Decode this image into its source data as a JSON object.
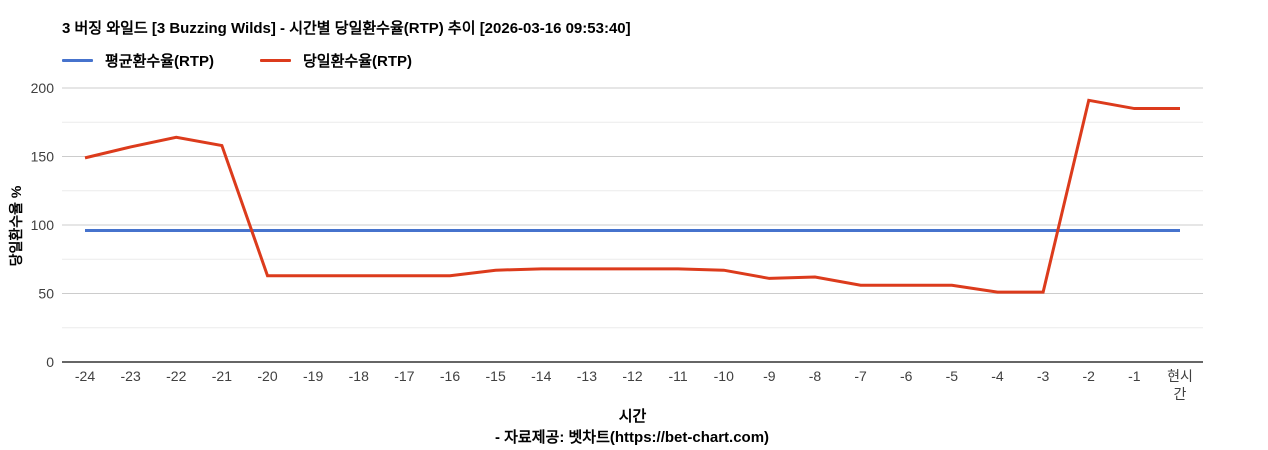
{
  "footer": {
    "text": "- 자료제공: 벳차트(https://bet-chart.com)"
  },
  "chart_data": {
    "type": "line",
    "title": "3 버징 와일드 [3 Buzzing Wilds] - 시간별 당일환수율(RTP) 추이 [2026-03-16 09:53:40]",
    "xlabel": "시간",
    "ylabel": "당일환수율 %",
    "ylim": [
      0,
      200
    ],
    "yticks": [
      0,
      50,
      100,
      150,
      200
    ],
    "minor_gridlines": [
      25,
      75,
      125,
      175
    ],
    "grid": true,
    "legend_position": "top-left",
    "categories": [
      "-24",
      "-23",
      "-22",
      "-21",
      "-20",
      "-19",
      "-18",
      "-17",
      "-16",
      "-15",
      "-14",
      "-13",
      "-12",
      "-11",
      "-10",
      "-9",
      "-8",
      "-7",
      "-6",
      "-5",
      "-4",
      "-3",
      "-2",
      "-1",
      "현시간"
    ],
    "series": [
      {
        "name": "평균환수율(RTP)",
        "color": "#4673cd",
        "values": [
          96,
          96,
          96,
          96,
          96,
          96,
          96,
          96,
          96,
          96,
          96,
          96,
          96,
          96,
          96,
          96,
          96,
          96,
          96,
          96,
          96,
          96,
          96,
          96,
          96
        ]
      },
      {
        "name": "당일환수율(RTP)",
        "color": "#dc3b1c",
        "values": [
          149,
          157,
          164,
          158,
          63,
          63,
          63,
          63,
          63,
          67,
          68,
          68,
          68,
          68,
          67,
          61,
          62,
          56,
          56,
          56,
          51,
          51,
          191,
          185,
          185
        ]
      }
    ],
    "colors": {
      "gridline_major": "#cccccc",
      "gridline_minor": "#ebebeb",
      "axis_line": "#333333",
      "tick_label": "#404040"
    }
  }
}
